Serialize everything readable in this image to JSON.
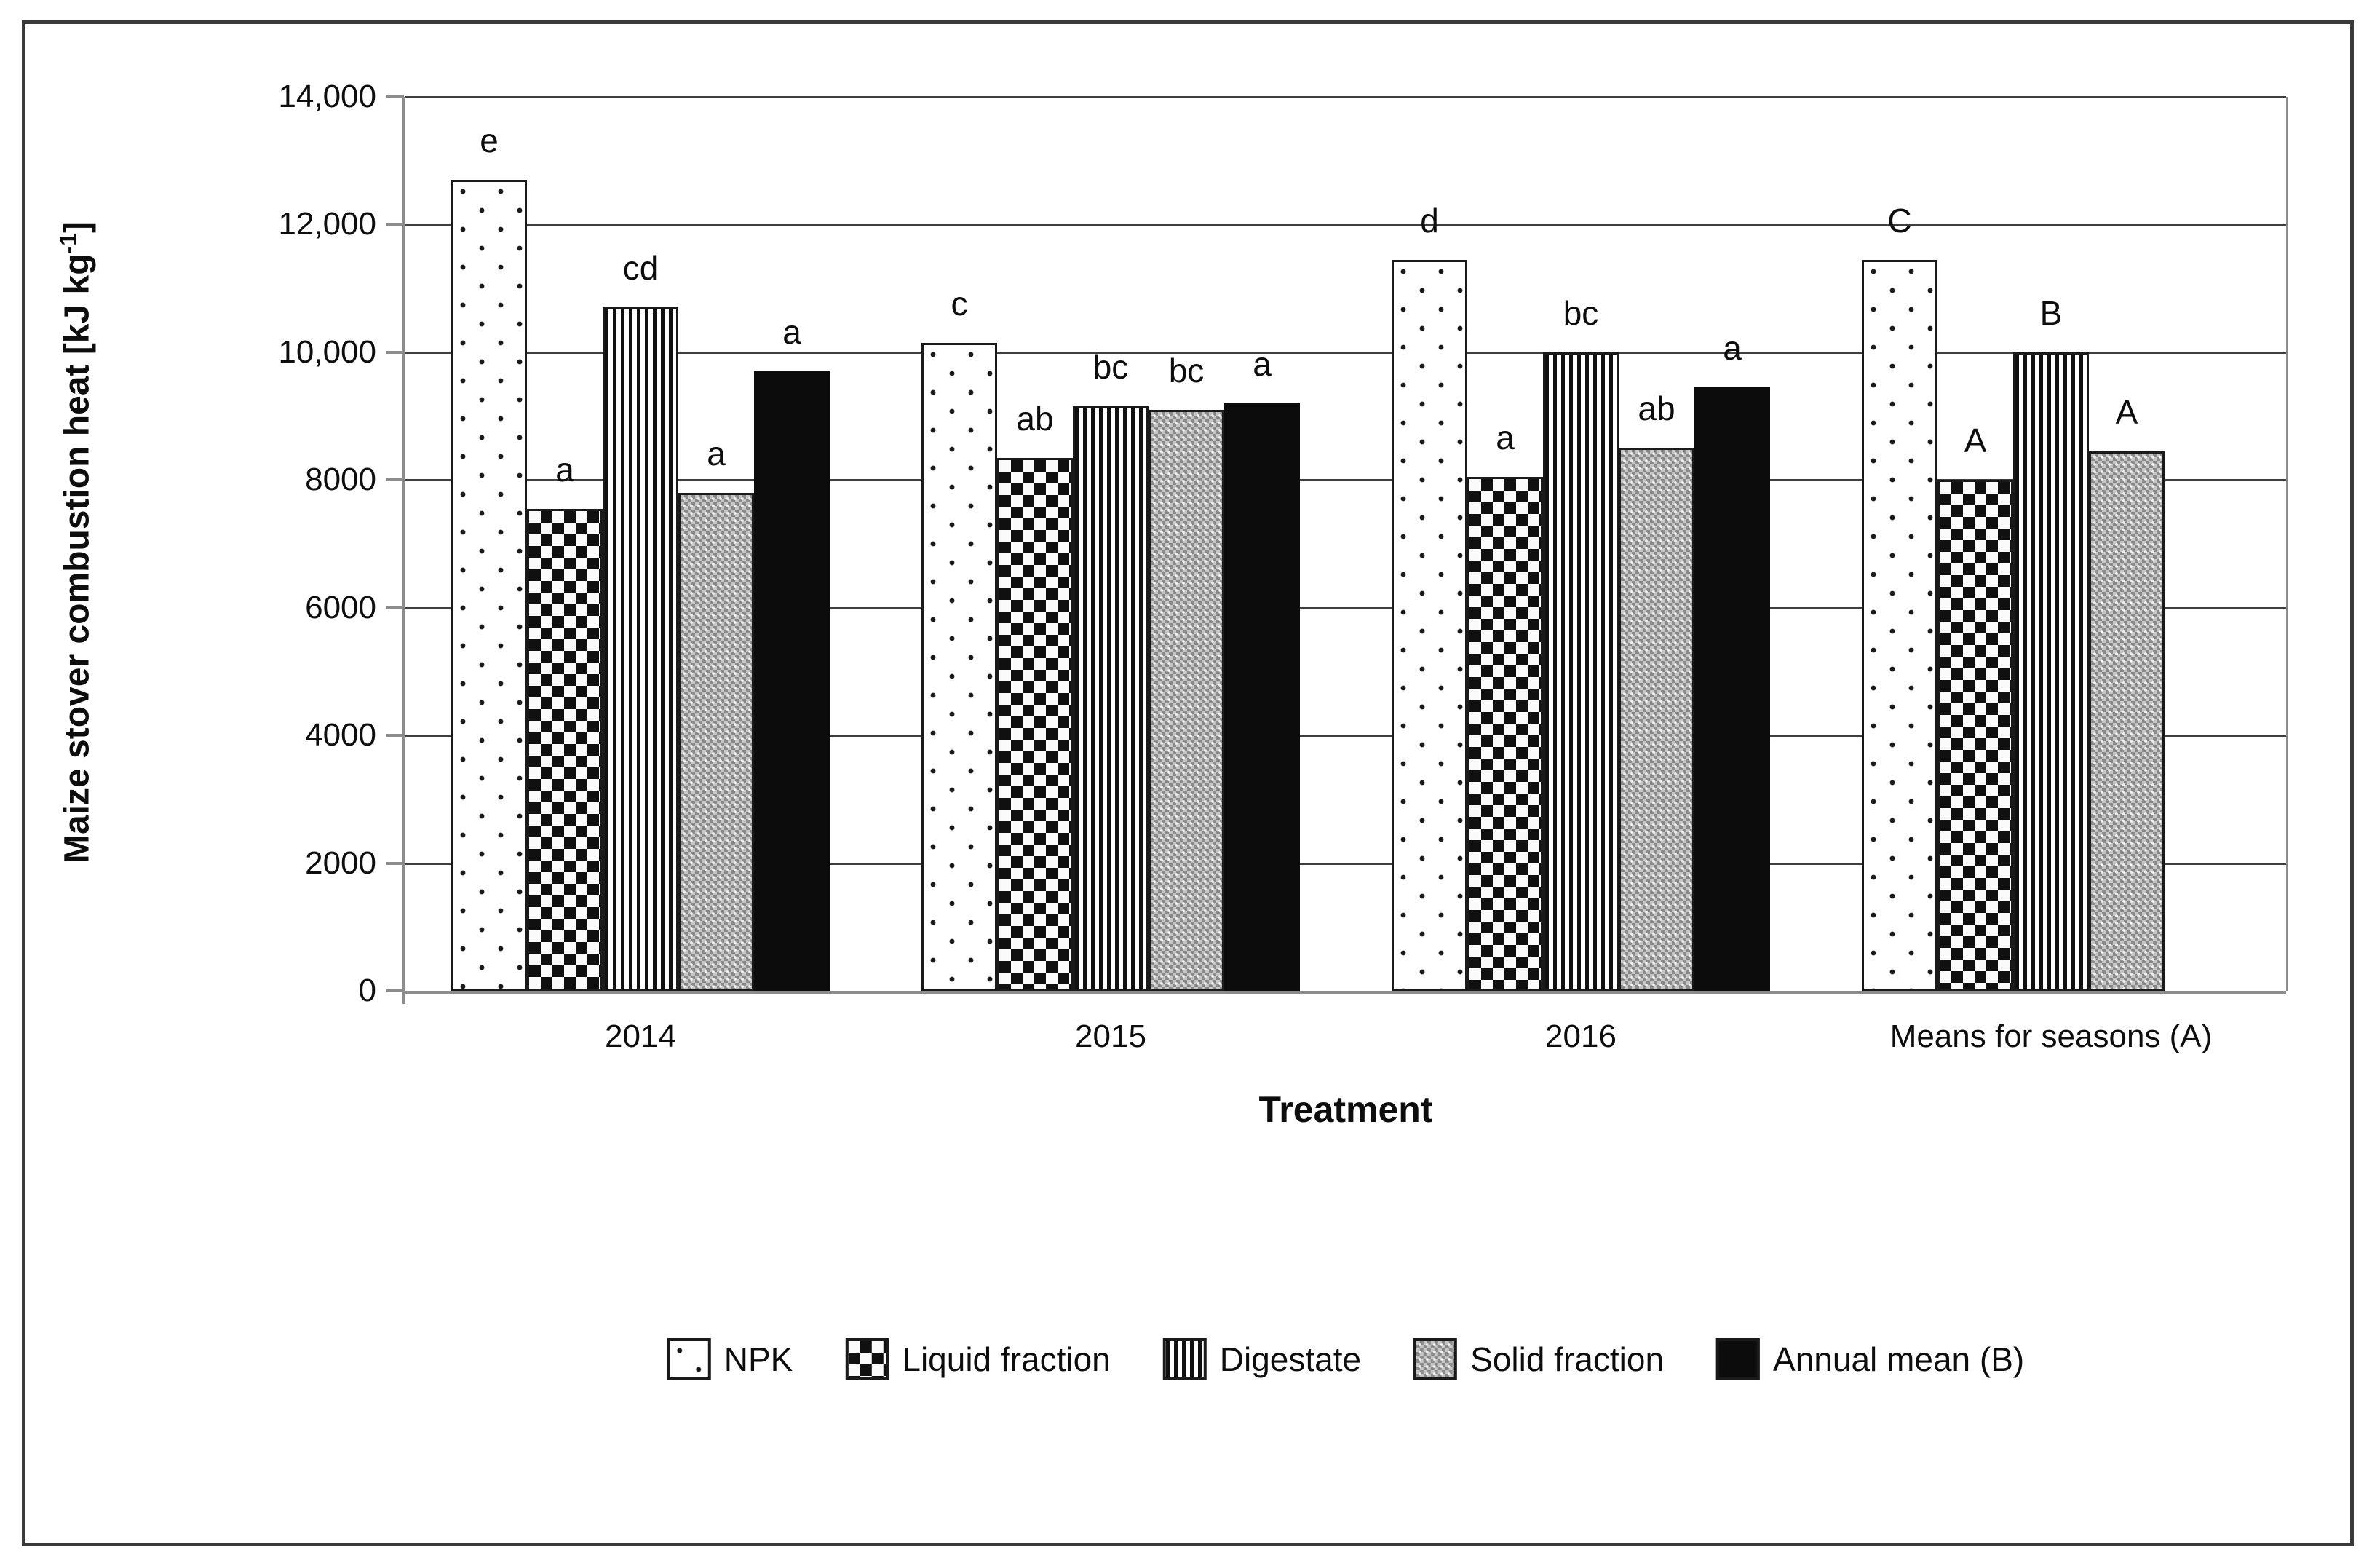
{
  "chart_data": {
    "type": "bar",
    "title": "",
    "xlabel": "Treatment",
    "ylabel": "Maize stover combustion heat [kJ kg-1]",
    "ylabel_prefix": "Maize stover combustion heat [kJ kg",
    "ylabel_sup": "-1",
    "ylabel_suffix": "]",
    "ylim": [
      0,
      14000
    ],
    "ytick_step": 2000,
    "yticks": [
      {
        "value": 0,
        "label": "0"
      },
      {
        "value": 2000,
        "label": "2000"
      },
      {
        "value": 4000,
        "label": "4000"
      },
      {
        "value": 6000,
        "label": "6000"
      },
      {
        "value": 8000,
        "label": "8000"
      },
      {
        "value": 10000,
        "label": "10,000"
      },
      {
        "value": 12000,
        "label": "12,000"
      },
      {
        "value": 14000,
        "label": "14,000"
      }
    ],
    "grid": true,
    "legend_position": "bottom",
    "categories": [
      "2014",
      "2015",
      "2016",
      "Means for seasons (A)"
    ],
    "series": [
      {
        "name": "NPK",
        "pattern": "dots",
        "values": [
          12700,
          10150,
          11450,
          11450
        ],
        "letters": [
          "e",
          "c",
          "d",
          "C"
        ]
      },
      {
        "name": "Liquid fraction",
        "pattern": "checker",
        "values": [
          7550,
          8350,
          8050,
          8000
        ],
        "letters": [
          "a",
          "ab",
          "a",
          "A"
        ]
      },
      {
        "name": "Digestate",
        "pattern": "vstripes",
        "values": [
          10700,
          9150,
          10000,
          10000
        ],
        "letters": [
          "cd",
          "bc",
          "bc",
          "B"
        ]
      },
      {
        "name": "Solid fraction",
        "pattern": "gray",
        "values": [
          7800,
          9100,
          8500,
          8450
        ],
        "letters": [
          "a",
          "bc",
          "ab",
          "A"
        ]
      },
      {
        "name": "Annual mean (B)",
        "pattern": "solid",
        "values": [
          9700,
          9200,
          9450,
          null
        ],
        "letters": [
          "a",
          "a",
          "a",
          null
        ]
      }
    ]
  }
}
